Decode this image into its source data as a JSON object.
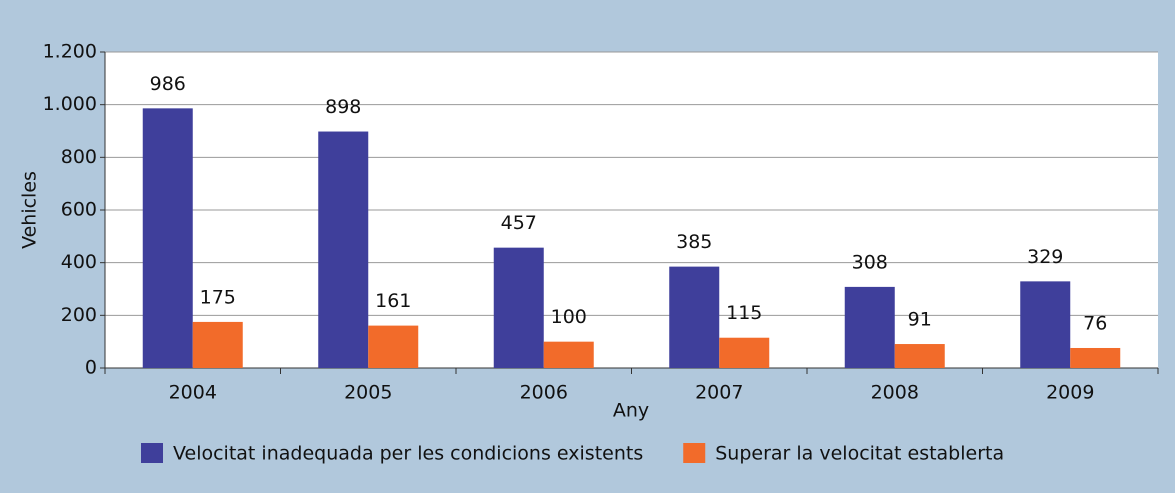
{
  "chart_data": {
    "type": "bar",
    "xlabel": "Any",
    "ylabel": "Vehicles",
    "categories": [
      "2004",
      "2005",
      "2006",
      "2007",
      "2008",
      "2009"
    ],
    "series": [
      {
        "name": "Velocitat inadequada per les condicions existents",
        "color": "#3f3f9b",
        "values": [
          986,
          898,
          457,
          385,
          308,
          329
        ]
      },
      {
        "name": "Superar la velocitat establerta",
        "color": "#f26b2a",
        "values": [
          175,
          161,
          100,
          115,
          91,
          76
        ]
      }
    ],
    "ylim": [
      0,
      1200
    ],
    "yticks": [
      0,
      200,
      400,
      600,
      800,
      {
        "value": 1000,
        "label": "1.000"
      },
      {
        "value": 1200,
        "label": "1.200"
      }
    ],
    "grid": true,
    "legend": "bottom"
  }
}
